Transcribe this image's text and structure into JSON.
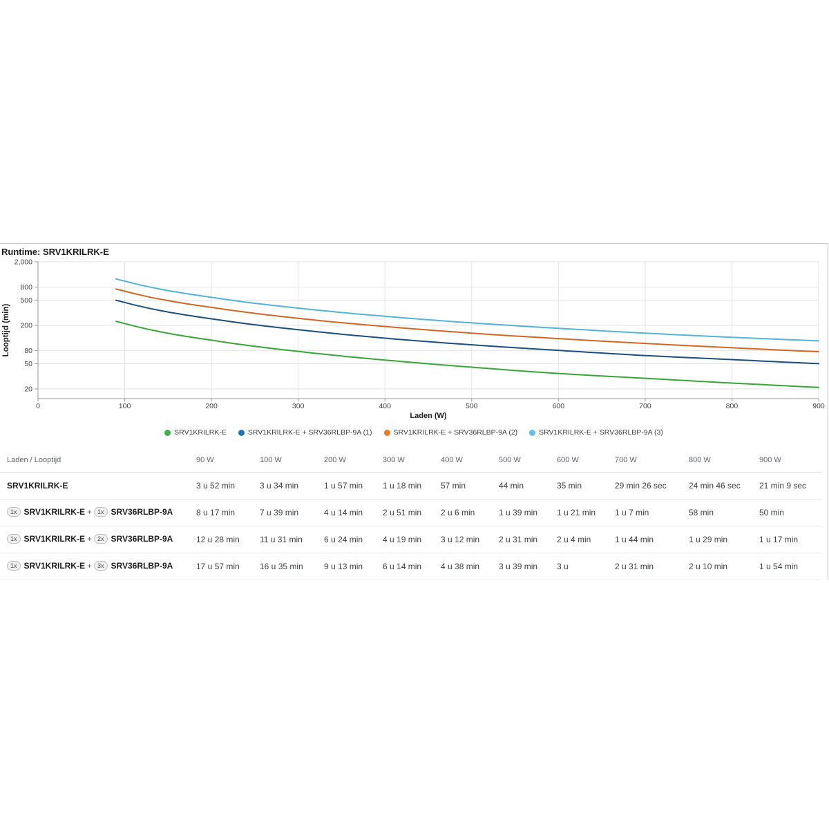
{
  "widget": {
    "title": "Runtime: SRV1KRILRK-E"
  },
  "chart_data": {
    "type": "line",
    "title": "Runtime: SRV1KRILRK-E",
    "xlabel": "Laden (W)",
    "ylabel": "Looptijd (min)",
    "x_axis": {
      "min": 0,
      "max": 900,
      "ticks": [
        0,
        100,
        200,
        300,
        400,
        500,
        600,
        700,
        800,
        900
      ]
    },
    "y_axis": {
      "scale": "log",
      "top": 2000,
      "bottom_axis_value": 14.5,
      "ticks": [
        2000,
        800,
        500,
        200,
        80,
        50,
        20
      ],
      "tick_labels": [
        "2,000",
        "800",
        "500",
        "200",
        "80",
        "50",
        "20"
      ]
    },
    "grid": true,
    "legend_position": "bottom",
    "x": [
      90,
      100,
      200,
      300,
      400,
      500,
      600,
      700,
      800,
      900
    ],
    "series": [
      {
        "name": "SRV1KRILRK-E",
        "color": "#36A635",
        "legend_color": "#3FAE49",
        "values_min": [
          232,
          214,
          117,
          78,
          57,
          44,
          35,
          29.43,
          24.77,
          21.15
        ]
      },
      {
        "name": "SRV1KRILRK-E + SRV36RLBP-9A (1)",
        "color": "#1A4E7E",
        "legend_color": "#2173B4",
        "values_min": [
          497,
          459,
          254,
          171,
          126,
          99,
          81,
          67,
          58,
          50
        ]
      },
      {
        "name": "SRV1KRILRK-E + SRV36RLBP-9A (2)",
        "color": "#D06721",
        "legend_color": "#E87A28",
        "values_min": [
          748,
          691,
          384,
          259,
          192,
          151,
          124,
          104,
          89,
          77
        ]
      },
      {
        "name": "SRV1KRILRK-E + SRV36RLBP-9A (3)",
        "color": "#4FB3DC",
        "legend_color": "#63BDE4",
        "values_min": [
          1077,
          995,
          553,
          374,
          278,
          219,
          180,
          151,
          130,
          114
        ]
      }
    ]
  },
  "table": {
    "header": [
      "Laden / Looptijd",
      "90 W",
      "100 W",
      "200 W",
      "300 W",
      "400 W",
      "500 W",
      "600 W",
      "700 W",
      "800 W",
      "900 W"
    ],
    "rows": [
      {
        "label_parts": [
          {
            "t": "name",
            "v": "SRV1KRILRK-E"
          }
        ],
        "values": [
          "3 u 52 min",
          "3 u 34 min",
          "1 u 57 min",
          "1 u 18 min",
          "57 min",
          "44 min",
          "35 min",
          "29 min 26 sec",
          "24 min 46 sec",
          "21 min 9 sec"
        ]
      },
      {
        "label_parts": [
          {
            "t": "badge",
            "v": "1x"
          },
          {
            "t": "name",
            "v": "SRV1KRILRK-E"
          },
          {
            "t": "sep",
            "v": "+"
          },
          {
            "t": "badge",
            "v": "1x"
          },
          {
            "t": "name",
            "v": "SRV36RLBP-9A"
          }
        ],
        "values": [
          "8 u 17 min",
          "7 u 39 min",
          "4 u 14 min",
          "2 u 51 min",
          "2 u 6 min",
          "1 u 39 min",
          "1 u 21 min",
          "1 u 7 min",
          "58 min",
          "50 min"
        ]
      },
      {
        "label_parts": [
          {
            "t": "badge",
            "v": "1x"
          },
          {
            "t": "name",
            "v": "SRV1KRILRK-E"
          },
          {
            "t": "sep",
            "v": "+"
          },
          {
            "t": "badge",
            "v": "2x"
          },
          {
            "t": "name",
            "v": "SRV36RLBP-9A"
          }
        ],
        "values": [
          "12 u 28 min",
          "11 u 31 min",
          "6 u 24 min",
          "4 u 19 min",
          "3 u 12 min",
          "2 u 31 min",
          "2 u 4 min",
          "1 u 44 min",
          "1 u 29 min",
          "1 u 17 min"
        ]
      },
      {
        "label_parts": [
          {
            "t": "badge",
            "v": "1x"
          },
          {
            "t": "name",
            "v": "SRV1KRILRK-E"
          },
          {
            "t": "sep",
            "v": "+"
          },
          {
            "t": "badge",
            "v": "3x"
          },
          {
            "t": "name",
            "v": "SRV36RLBP-9A"
          }
        ],
        "values": [
          "17 u 57 min",
          "16 u 35 min",
          "9 u 13 min",
          "6 u 14 min",
          "4 u 38 min",
          "3 u 39 min",
          "3 u",
          "2 u 31 min",
          "2 u 10 min",
          "1 u 54 min"
        ]
      }
    ]
  },
  "colors": {
    "grid": "#e3e3e3",
    "axis": "#9a9a9a",
    "tick_text": "#444444",
    "border": "#c9c9c9"
  }
}
